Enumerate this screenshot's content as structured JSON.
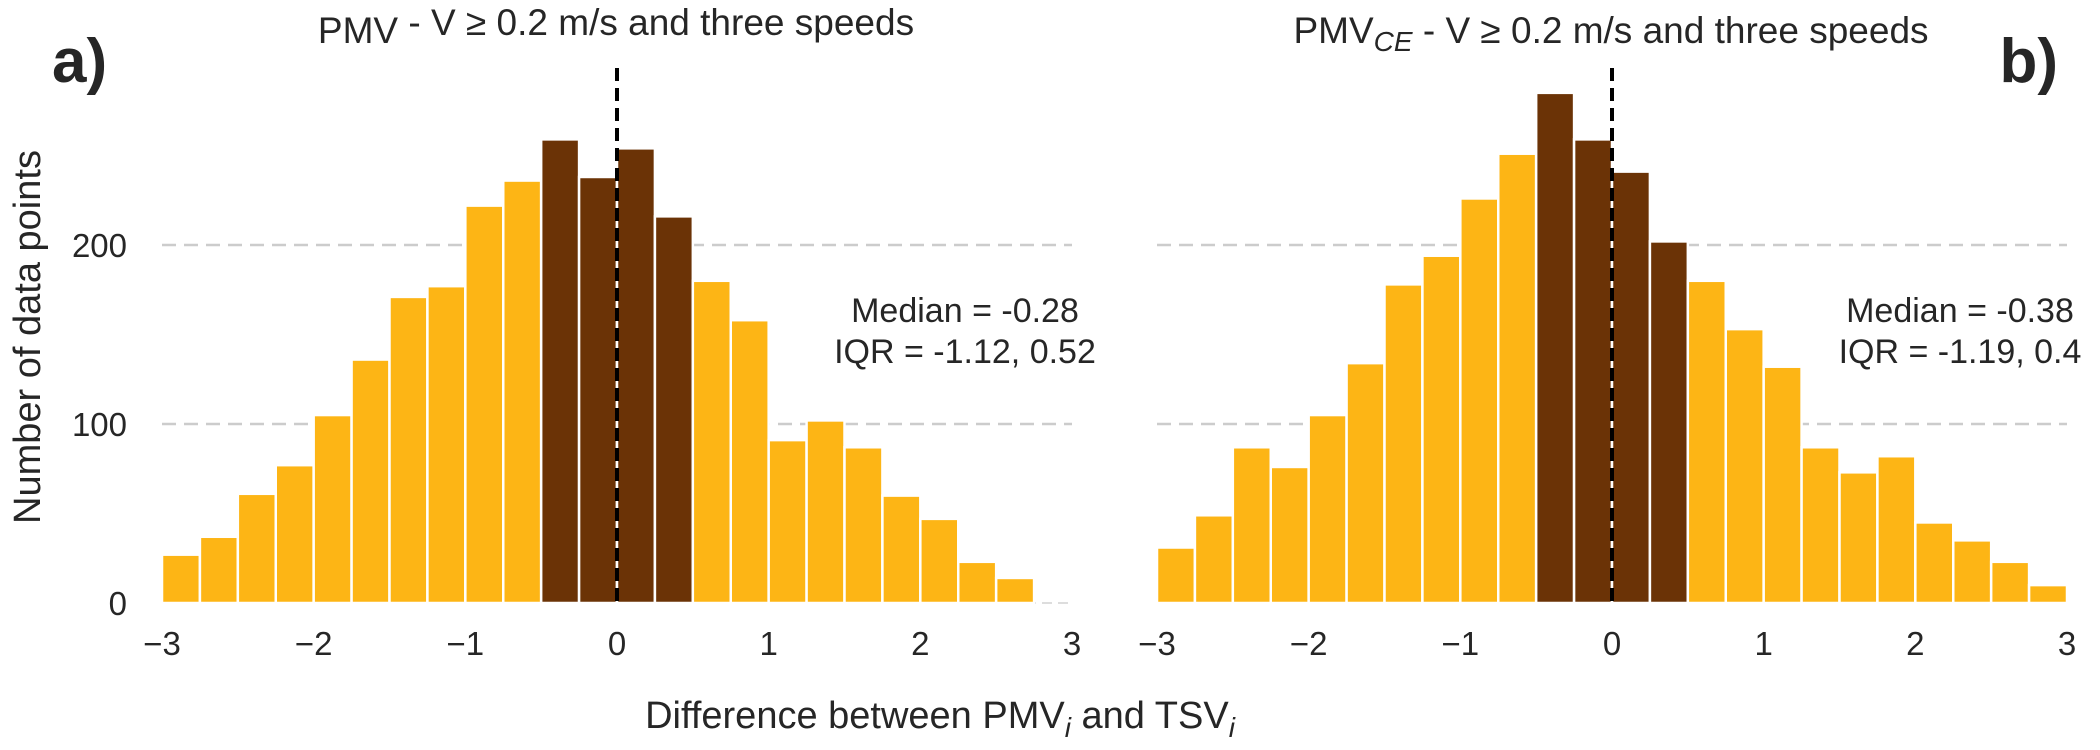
{
  "chart_data": [
    {
      "type": "bar",
      "panel_letter": "a)",
      "title_main": "PMV",
      "title_sub": "",
      "title_rest": " - V  ≥  0.2 m/s and three speeds",
      "xlim": [
        -3,
        3
      ],
      "ylim": [
        0,
        300
      ],
      "xticks": [
        -3,
        -2,
        -1,
        0,
        1,
        2,
        3
      ],
      "yticks": [
        0,
        100,
        200
      ],
      "grid": true,
      "bin_width": 0.25,
      "bin_starts": [
        -3,
        -2.75,
        -2.5,
        -2.25,
        -2,
        -1.75,
        -1.5,
        -1.25,
        -1,
        -0.75,
        -0.5,
        -0.25,
        0,
        0.25,
        0.5,
        0.75,
        1,
        1.25,
        1.5,
        1.75,
        2,
        2.25,
        2.5,
        2.75
      ],
      "values": [
        27,
        37,
        61,
        77,
        105,
        136,
        171,
        177,
        222,
        236,
        259,
        238,
        254,
        216,
        180,
        158,
        91,
        102,
        87,
        60,
        47,
        23,
        14,
        0
      ],
      "highlight_range": [
        -0.5,
        0.5
      ],
      "colors": {
        "bar": "#FDB515",
        "highlight": "#6B3306",
        "median_line": "#000000"
      },
      "annotation": [
        "Median = -0.28",
        "IQR = -1.12, 0.52"
      ]
    },
    {
      "type": "bar",
      "panel_letter": "b)",
      "title_main": "PMV",
      "title_sub": "CE",
      "title_rest": " - V  ≥  0.2 m/s and three speeds",
      "xlim": [
        -3,
        3
      ],
      "ylim": [
        0,
        300
      ],
      "xticks": [
        -3,
        -2,
        -1,
        0,
        1,
        2,
        3
      ],
      "yticks": [
        0,
        100,
        200
      ],
      "grid": true,
      "bin_width": 0.25,
      "bin_starts": [
        -3,
        -2.75,
        -2.5,
        -2.25,
        -2,
        -1.75,
        -1.5,
        -1.25,
        -1,
        -0.75,
        -0.5,
        -0.25,
        0,
        0.25,
        0.5,
        0.75,
        1,
        1.25,
        1.5,
        1.75,
        2,
        2.25,
        2.5,
        2.75
      ],
      "values": [
        31,
        49,
        87,
        76,
        105,
        134,
        178,
        194,
        226,
        251,
        285,
        259,
        241,
        202,
        180,
        153,
        132,
        87,
        73,
        82,
        45,
        35,
        23,
        10
      ],
      "highlight_range": [
        -0.5,
        0.5
      ],
      "colors": {
        "bar": "#FDB515",
        "highlight": "#6B3306",
        "median_line": "#000000"
      },
      "annotation": [
        "Median = -0.38",
        "IQR = -1.19, 0.4"
      ]
    }
  ],
  "axes": {
    "ylabel": "Number of data points",
    "xlabel_parts": [
      "Difference between PMV",
      "i",
      " and TSV",
      "i"
    ]
  }
}
